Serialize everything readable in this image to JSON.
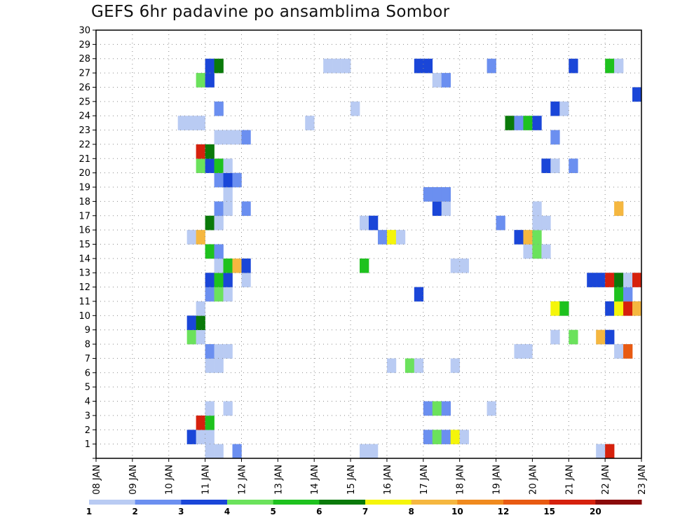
{
  "chart_data": {
    "type": "heatmap",
    "title": "GEFS 6hr padavine po ansamblima Sombor",
    "xlabel": "",
    "ylabel": "",
    "x_tick_labels": [
      "08 JAN",
      "09 JAN",
      "10 JAN",
      "11 JAN",
      "12 JAN",
      "13 JAN",
      "14 JAN",
      "15 JAN",
      "16 JAN",
      "17 JAN",
      "18 JAN",
      "19 JAN",
      "20 JAN",
      "21 JAN",
      "22 JAN",
      "23 JAN"
    ],
    "xlim_days": [
      0,
      15
    ],
    "x_step_days": 0.25,
    "y_tick_labels": [
      "1",
      "2",
      "3",
      "4",
      "5",
      "6",
      "7",
      "8",
      "9",
      "10",
      "11",
      "12",
      "13",
      "14",
      "15",
      "16",
      "17",
      "18",
      "19",
      "20",
      "21",
      "22",
      "23",
      "24",
      "25",
      "26",
      "27",
      "28",
      "29",
      "30"
    ],
    "ylim": [
      0,
      30
    ],
    "grid": true,
    "legend": {
      "placement": "bottom",
      "levels": [
        "1",
        "2",
        "3",
        "4",
        "5",
        "6",
        "7",
        "8",
        "10",
        "12",
        "15",
        "20"
      ],
      "colors": [
        "#b9cbf3",
        "#6b8ff0",
        "#1a46d8",
        "#6be25c",
        "#1ec21e",
        "#0a7a0a",
        "#f5f50a",
        "#f5b740",
        "#f08a1e",
        "#e85a12",
        "#d6210d",
        "#8b0a0a"
      ]
    },
    "cells": [
      {
        "x": 3.0,
        "y": 0,
        "c": 1
      },
      {
        "x": 3.25,
        "y": 0,
        "c": 1
      },
      {
        "x": 3.75,
        "y": 0,
        "c": 2
      },
      {
        "x": 7.25,
        "y": 0,
        "c": 1
      },
      {
        "x": 7.5,
        "y": 0,
        "c": 1
      },
      {
        "x": 13.75,
        "y": 0,
        "c": 1
      },
      {
        "x": 14.0,
        "y": 0,
        "c": 11
      },
      {
        "x": 2.5,
        "y": 1,
        "c": 3
      },
      {
        "x": 2.75,
        "y": 1,
        "c": 1
      },
      {
        "x": 3.0,
        "y": 1,
        "c": 1
      },
      {
        "x": 9.0,
        "y": 1,
        "c": 2
      },
      {
        "x": 9.25,
        "y": 1,
        "c": 4
      },
      {
        "x": 9.5,
        "y": 1,
        "c": 2
      },
      {
        "x": 9.75,
        "y": 1,
        "c": 7
      },
      {
        "x": 10.0,
        "y": 1,
        "c": 1
      },
      {
        "x": 2.75,
        "y": 2,
        "c": 11
      },
      {
        "x": 3.0,
        "y": 2,
        "c": 5
      },
      {
        "x": 3.0,
        "y": 3,
        "c": 1
      },
      {
        "x": 3.5,
        "y": 3,
        "c": 1
      },
      {
        "x": 9.0,
        "y": 3,
        "c": 2
      },
      {
        "x": 9.25,
        "y": 3,
        "c": 4
      },
      {
        "x": 9.5,
        "y": 3,
        "c": 2
      },
      {
        "x": 10.75,
        "y": 3,
        "c": 1
      },
      {
        "x": 3.0,
        "y": 6,
        "c": 1
      },
      {
        "x": 3.25,
        "y": 6,
        "c": 1
      },
      {
        "x": 8.0,
        "y": 6,
        "c": 1
      },
      {
        "x": 8.5,
        "y": 6,
        "c": 4
      },
      {
        "x": 8.75,
        "y": 6,
        "c": 1
      },
      {
        "x": 9.75,
        "y": 6,
        "c": 1
      },
      {
        "x": 3.0,
        "y": 7,
        "c": 2
      },
      {
        "x": 3.25,
        "y": 7,
        "c": 1
      },
      {
        "x": 3.5,
        "y": 7,
        "c": 1
      },
      {
        "x": 11.5,
        "y": 7,
        "c": 1
      },
      {
        "x": 11.75,
        "y": 7,
        "c": 1
      },
      {
        "x": 14.25,
        "y": 7,
        "c": 1
      },
      {
        "x": 14.5,
        "y": 7,
        "c": 10
      },
      {
        "x": 2.5,
        "y": 8,
        "c": 4
      },
      {
        "x": 2.75,
        "y": 8,
        "c": 1
      },
      {
        "x": 12.5,
        "y": 8,
        "c": 1
      },
      {
        "x": 13.0,
        "y": 8,
        "c": 4
      },
      {
        "x": 13.75,
        "y": 8,
        "c": 8
      },
      {
        "x": 14.0,
        "y": 8,
        "c": 3
      },
      {
        "x": 2.5,
        "y": 9,
        "c": 3
      },
      {
        "x": 2.75,
        "y": 9,
        "c": 6
      },
      {
        "x": 2.75,
        "y": 10,
        "c": 1
      },
      {
        "x": 12.5,
        "y": 10,
        "c": 7
      },
      {
        "x": 12.75,
        "y": 10,
        "c": 5
      },
      {
        "x": 14.0,
        "y": 10,
        "c": 3
      },
      {
        "x": 14.25,
        "y": 10,
        "c": 7
      },
      {
        "x": 14.5,
        "y": 10,
        "c": 11
      },
      {
        "x": 14.75,
        "y": 10,
        "c": 8
      },
      {
        "x": 3.0,
        "y": 11,
        "c": 2
      },
      {
        "x": 3.25,
        "y": 11,
        "c": 4
      },
      {
        "x": 3.5,
        "y": 11,
        "c": 1
      },
      {
        "x": 8.75,
        "y": 11,
        "c": 3
      },
      {
        "x": 14.25,
        "y": 11,
        "c": 5
      },
      {
        "x": 14.5,
        "y": 11,
        "c": 2
      },
      {
        "x": 3.0,
        "y": 12,
        "c": 3
      },
      {
        "x": 3.25,
        "y": 12,
        "c": 5
      },
      {
        "x": 3.5,
        "y": 12,
        "c": 3
      },
      {
        "x": 4.0,
        "y": 12,
        "c": 1
      },
      {
        "x": 13.5,
        "y": 12,
        "c": 3
      },
      {
        "x": 13.75,
        "y": 12,
        "c": 3
      },
      {
        "x": 14.0,
        "y": 12,
        "c": 11
      },
      {
        "x": 14.25,
        "y": 12,
        "c": 6
      },
      {
        "x": 14.5,
        "y": 12,
        "c": 1
      },
      {
        "x": 14.75,
        "y": 12,
        "c": 11
      },
      {
        "x": 3.25,
        "y": 13,
        "c": 1
      },
      {
        "x": 3.5,
        "y": 13,
        "c": 5
      },
      {
        "x": 3.75,
        "y": 13,
        "c": 8
      },
      {
        "x": 4.0,
        "y": 13,
        "c": 3
      },
      {
        "x": 7.25,
        "y": 13,
        "c": 5
      },
      {
        "x": 9.75,
        "y": 13,
        "c": 1
      },
      {
        "x": 10.0,
        "y": 13,
        "c": 1
      },
      {
        "x": 3.0,
        "y": 14,
        "c": 5
      },
      {
        "x": 3.25,
        "y": 14,
        "c": 2
      },
      {
        "x": 11.75,
        "y": 14,
        "c": 1
      },
      {
        "x": 12.0,
        "y": 14,
        "c": 4
      },
      {
        "x": 12.25,
        "y": 14,
        "c": 1
      },
      {
        "x": 2.5,
        "y": 15,
        "c": 1
      },
      {
        "x": 2.75,
        "y": 15,
        "c": 8
      },
      {
        "x": 7.75,
        "y": 15,
        "c": 2
      },
      {
        "x": 8.0,
        "y": 15,
        "c": 7
      },
      {
        "x": 8.25,
        "y": 15,
        "c": 1
      },
      {
        "x": 11.5,
        "y": 15,
        "c": 3
      },
      {
        "x": 11.75,
        "y": 15,
        "c": 8
      },
      {
        "x": 12.0,
        "y": 15,
        "c": 4
      },
      {
        "x": 3.0,
        "y": 16,
        "c": 6
      },
      {
        "x": 3.25,
        "y": 16,
        "c": 1
      },
      {
        "x": 7.25,
        "y": 16,
        "c": 1
      },
      {
        "x": 7.5,
        "y": 16,
        "c": 3
      },
      {
        "x": 11.0,
        "y": 16,
        "c": 2
      },
      {
        "x": 12.0,
        "y": 16,
        "c": 1
      },
      {
        "x": 12.25,
        "y": 16,
        "c": 1
      },
      {
        "x": 3.25,
        "y": 17,
        "c": 2
      },
      {
        "x": 3.5,
        "y": 17,
        "c": 1
      },
      {
        "x": 4.0,
        "y": 17,
        "c": 2
      },
      {
        "x": 9.25,
        "y": 17,
        "c": 3
      },
      {
        "x": 9.5,
        "y": 17,
        "c": 1
      },
      {
        "x": 12.0,
        "y": 17,
        "c": 1
      },
      {
        "x": 14.25,
        "y": 17,
        "c": 8
      },
      {
        "x": 3.5,
        "y": 18,
        "c": 1
      },
      {
        "x": 9.0,
        "y": 18,
        "c": 2
      },
      {
        "x": 9.25,
        "y": 18,
        "c": 2
      },
      {
        "x": 9.5,
        "y": 18,
        "c": 2
      },
      {
        "x": 3.25,
        "y": 19,
        "c": 2
      },
      {
        "x": 3.5,
        "y": 19,
        "c": 3
      },
      {
        "x": 3.75,
        "y": 19,
        "c": 2
      },
      {
        "x": 2.75,
        "y": 20,
        "c": 4
      },
      {
        "x": 3.0,
        "y": 20,
        "c": 3
      },
      {
        "x": 3.25,
        "y": 20,
        "c": 5
      },
      {
        "x": 3.5,
        "y": 20,
        "c": 1
      },
      {
        "x": 12.25,
        "y": 20,
        "c": 3
      },
      {
        "x": 12.5,
        "y": 20,
        "c": 1
      },
      {
        "x": 13.0,
        "y": 20,
        "c": 2
      },
      {
        "x": 2.75,
        "y": 21,
        "c": 11
      },
      {
        "x": 3.0,
        "y": 21,
        "c": 6
      },
      {
        "x": 3.25,
        "y": 22,
        "c": 1
      },
      {
        "x": 3.5,
        "y": 22,
        "c": 1
      },
      {
        "x": 3.75,
        "y": 22,
        "c": 1
      },
      {
        "x": 4.0,
        "y": 22,
        "c": 2
      },
      {
        "x": 12.5,
        "y": 22,
        "c": 2
      },
      {
        "x": 2.25,
        "y": 23,
        "c": 1
      },
      {
        "x": 2.5,
        "y": 23,
        "c": 1
      },
      {
        "x": 2.75,
        "y": 23,
        "c": 1
      },
      {
        "x": 5.75,
        "y": 23,
        "c": 1
      },
      {
        "x": 11.25,
        "y": 23,
        "c": 6
      },
      {
        "x": 11.5,
        "y": 23,
        "c": 2
      },
      {
        "x": 11.75,
        "y": 23,
        "c": 5
      },
      {
        "x": 12.0,
        "y": 23,
        "c": 3
      },
      {
        "x": 3.25,
        "y": 24,
        "c": 2
      },
      {
        "x": 7.0,
        "y": 24,
        "c": 1
      },
      {
        "x": 12.5,
        "y": 24,
        "c": 3
      },
      {
        "x": 12.75,
        "y": 24,
        "c": 1
      },
      {
        "x": 14.75,
        "y": 25,
        "c": 3
      },
      {
        "x": 2.75,
        "y": 26,
        "c": 4
      },
      {
        "x": 3.0,
        "y": 26,
        "c": 3
      },
      {
        "x": 9.25,
        "y": 26,
        "c": 1
      },
      {
        "x": 9.5,
        "y": 26,
        "c": 2
      },
      {
        "x": 3.0,
        "y": 27,
        "c": 3
      },
      {
        "x": 3.25,
        "y": 27,
        "c": 6
      },
      {
        "x": 6.25,
        "y": 27,
        "c": 1
      },
      {
        "x": 6.5,
        "y": 27,
        "c": 1
      },
      {
        "x": 6.75,
        "y": 27,
        "c": 1
      },
      {
        "x": 8.75,
        "y": 27,
        "c": 3
      },
      {
        "x": 9.0,
        "y": 27,
        "c": 3
      },
      {
        "x": 10.75,
        "y": 27,
        "c": 2
      },
      {
        "x": 13.0,
        "y": 27,
        "c": 3
      },
      {
        "x": 14.0,
        "y": 27,
        "c": 5
      },
      {
        "x": 14.25,
        "y": 27,
        "c": 1
      }
    ]
  }
}
